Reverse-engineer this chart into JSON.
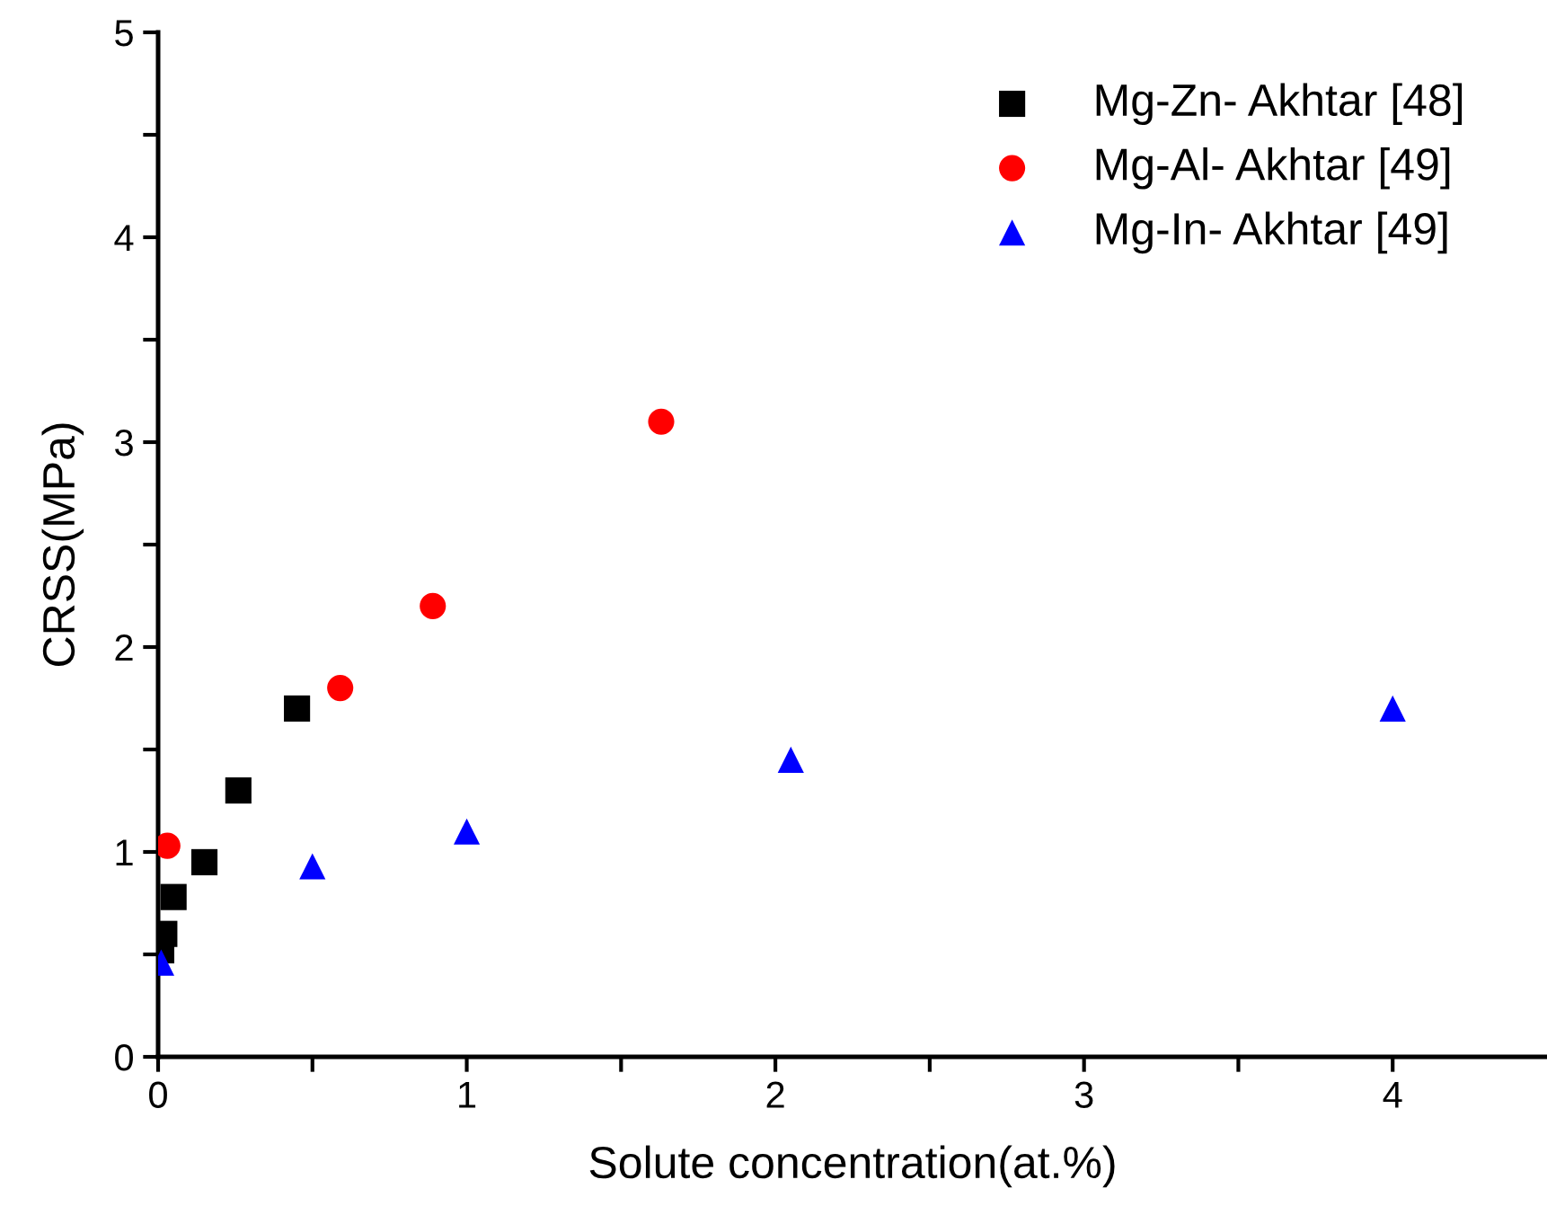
{
  "chart_data": {
    "type": "scatter",
    "xlabel": "Solute concentration(at.%)",
    "ylabel": "CRSS(MPa)",
    "xlim": [
      0,
      4.5
    ],
    "ylim": [
      0,
      5
    ],
    "xticks": [
      0,
      {
        "value": 0.5,
        "label": null
      },
      1,
      {
        "value": 1.5,
        "label": null
      },
      2,
      {
        "value": 2.5,
        "label": null
      },
      3,
      {
        "value": 3.5,
        "label": null
      },
      4
    ],
    "yticks": [
      0,
      {
        "value": 0.5,
        "label": null
      },
      1,
      {
        "value": 1.5,
        "label": null
      },
      2,
      {
        "value": 2.5,
        "label": null
      },
      3,
      {
        "value": 3.5,
        "label": null
      },
      4,
      {
        "value": 4.5,
        "label": null
      },
      5
    ],
    "grid": false,
    "legend": "top right",
    "series": [
      {
        "name": "Mg-Zn- Akhtar [48]",
        "color": "#000000",
        "marker": "square",
        "x": [
          0.01,
          0.02,
          0.05,
          0.15,
          0.26,
          0.45
        ],
        "values": [
          0.52,
          0.6,
          0.78,
          0.95,
          1.3,
          1.7
        ]
      },
      {
        "name": "Mg-Al- Akhtar [49]",
        "color": "#ff0000",
        "marker": "circle",
        "x": [
          0.03,
          0.59,
          0.89,
          1.63
        ],
        "values": [
          1.03,
          1.8,
          2.2,
          3.1
        ]
      },
      {
        "name": "Mg-In- Akhtar [49]",
        "color": "#0000ff",
        "marker": "triangle",
        "x": [
          0.01,
          0.5,
          1.0,
          2.05,
          4.0
        ],
        "values": [
          0.46,
          0.93,
          1.1,
          1.45,
          1.7
        ]
      }
    ]
  }
}
